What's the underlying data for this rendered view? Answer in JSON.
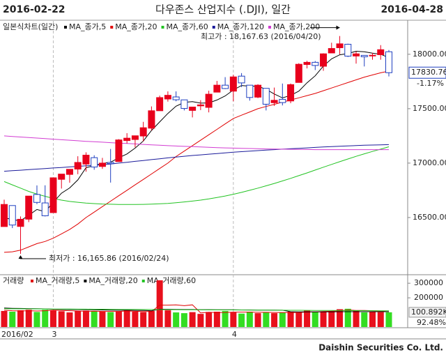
{
  "chart_data": {
    "type": "candlestick",
    "title": "다우존스 산업지수 (.DJI), 일간",
    "start_label": "2016-02-22",
    "end_label": "2016-04-28",
    "legend_title": "일본식차트(일간)",
    "categories": [
      "2016/02",
      null,
      null,
      null,
      null,
      null,
      "3",
      null,
      null,
      null,
      null,
      null,
      null,
      null,
      null,
      null,
      null,
      null,
      null,
      null,
      null,
      null,
      null,
      null,
      null,
      null,
      null,
      null,
      "4",
      null,
      null,
      null,
      null,
      null,
      null,
      null,
      null,
      null,
      null,
      null,
      null,
      null,
      null,
      null,
      null,
      null,
      null,
      null
    ],
    "open": [
      16417,
      16610,
      16418,
      16485,
      16712,
      16634,
      16545,
      16851,
      16896,
      16945,
      16991,
      17050,
      16969,
      17006,
      17014,
      17207,
      17217,
      17249,
      17321,
      17481,
      17589,
      17608,
      17581,
      17484,
      17526,
      17512,
      17652,
      17716,
      17661,
      17799,
      17716,
      17606,
      17687,
      17555,
      17586,
      17571,
      17741,
      17906,
      17926,
      17890,
      18012,
      18060,
      18092,
      17984,
      17990,
      17990,
      17996,
      18023
    ],
    "high": [
      16664,
      16610,
      16510,
      16697,
      16795,
      16796,
      16865,
      16900,
      16944,
      17063,
      17099,
      17072,
      17048,
      17130,
      17220,
      17275,
      17251,
      17379,
      17521,
      17620,
      17659,
      17659,
      17582,
      17515,
      17578,
      17665,
      17755,
      17790,
      17811,
      17827,
      17716,
      17725,
      17687,
      17694,
      17731,
      17731,
      17918,
      17940,
      17938,
      18009,
      18106,
      18167.63,
      18097,
      18026,
      17990,
      18012,
      18084,
      18039
    ],
    "low": [
      16417,
      16403,
      16165.86,
      16458,
      16623,
      16510,
      16545,
      16766,
      16820,
      16898,
      16921,
      16939,
      16947,
      16821,
      17014,
      17180,
      17145,
      17200,
      17300,
      17481,
      17565,
      17568,
      17484,
      17420,
      17487,
      17466,
      17652,
      17680,
      17568,
      17698,
      17574,
      17597,
      17484,
      17525,
      17530,
      17550,
      17741,
      17870,
      17855,
      17848,
      18012,
      18000,
      17975,
      17914,
      17888,
      17950,
      17950,
      17796
    ],
    "close": [
      16620,
      16431,
      16484,
      16697,
      16639,
      16516,
      16865,
      16899,
      16943,
      17006,
      17073,
      16964,
      17000,
      16995,
      17213,
      17229,
      17251,
      17325,
      17481,
      17602,
      17623,
      17582,
      17502,
      17515,
      17535,
      17633,
      17716,
      17685,
      17792,
      17737,
      17603,
      17716,
      17541,
      17577,
      17556,
      17721,
      17908,
      17926,
      17897,
      18004,
      18053,
      18096,
      17983,
      18004,
      17977,
      17991,
      18042,
      17830.76
    ],
    "up_color": "#e8001c",
    "down_color": "#1f3fc0",
    "series": [
      {
        "name": "MA_종가,5",
        "color": "#000000",
        "values": [
          16500,
          16480,
          16470,
          16520,
          16574,
          16553,
          16640,
          16723,
          16772,
          16846,
          16957,
          16977,
          16997,
          17008,
          17049,
          17084,
          17138,
          17203,
          17300,
          17378,
          17456,
          17523,
          17558,
          17565,
          17551,
          17553,
          17580,
          17617,
          17672,
          17713,
          17707,
          17707,
          17678,
          17635,
          17599,
          17622,
          17661,
          17738,
          17802,
          17891,
          17958,
          17995,
          18007,
          18028,
          18023,
          18010,
          18000,
          17969
        ]
      },
      {
        "name": "MA_종가,20",
        "color": "#e00000",
        "values": [
          16180,
          16185,
          16200,
          16230,
          16260,
          16280,
          16310,
          16350,
          16390,
          16440,
          16500,
          16550,
          16600,
          16650,
          16700,
          16750,
          16800,
          16850,
          16900,
          16950,
          17000,
          17060,
          17110,
          17160,
          17210,
          17260,
          17310,
          17360,
          17410,
          17440,
          17470,
          17500,
          17520,
          17540,
          17560,
          17580,
          17600,
          17620,
          17640,
          17665,
          17690,
          17715,
          17740,
          17765,
          17790,
          17810,
          17830,
          17845
        ]
      },
      {
        "name": "MA_종가,60",
        "color": "#22c322",
        "values": [
          16830,
          16800,
          16770,
          16740,
          16715,
          16695,
          16675,
          16660,
          16648,
          16640,
          16633,
          16628,
          16624,
          16622,
          16620,
          16620,
          16620,
          16621,
          16623,
          16626,
          16630,
          16636,
          16643,
          16651,
          16660,
          16671,
          16684,
          16698,
          16714,
          16731,
          16750,
          16770,
          16791,
          16813,
          16836,
          16860,
          16885,
          16910,
          16936,
          16962,
          16988,
          17013,
          17038,
          17062,
          17085,
          17107,
          17128,
          17150
        ]
      },
      {
        "name": "MA_종가,120",
        "color": "#1a1a9a",
        "values": [
          16925,
          16930,
          16935,
          16940,
          16945,
          16950,
          16955,
          16960,
          16965,
          16970,
          16975,
          16980,
          16985,
          16992,
          17000,
          17008,
          17016,
          17024,
          17032,
          17040,
          17048,
          17056,
          17063,
          17070,
          17076,
          17082,
          17088,
          17094,
          17100,
          17105,
          17110,
          17115,
          17120,
          17124,
          17128,
          17132,
          17136,
          17140,
          17144,
          17148,
          17152,
          17155,
          17158,
          17161,
          17164,
          17166,
          17168,
          17170
        ]
      },
      {
        "name": "MA_종가,200",
        "color": "#d23cd2",
        "values": [
          17250,
          17245,
          17240,
          17235,
          17230,
          17225,
          17220,
          17215,
          17210,
          17205,
          17200,
          17196,
          17192,
          17188,
          17184,
          17180,
          17176,
          17172,
          17168,
          17164,
          17160,
          17157,
          17154,
          17151,
          17148,
          17145,
          17142,
          17140,
          17138,
          17136,
          17134,
          17132,
          17130,
          17129,
          17128,
          17127,
          17126,
          17125,
          17124,
          17124,
          17124,
          17124,
          17124,
          17124,
          17124,
          17124,
          17124,
          17124
        ]
      }
    ],
    "ylim": [
      16000,
      18300
    ],
    "yticks": [
      {
        "value": 16500,
        "label": "16500.00"
      },
      {
        "value": 17000,
        "label": "17000.00"
      },
      {
        "value": 17500,
        "label": "17500.00"
      },
      {
        "value": 18000,
        "label": "18000.00"
      }
    ],
    "last_label": "17830.76",
    "change_label": "-1.17%",
    "high_label": "최고가 : 18,167.63 (2016/04/20)",
    "low_label": "최저가 : 16,165.86 (2016/02/24)",
    "volume": {
      "title": "거래량",
      "values": [
        110000,
        105000,
        115000,
        118000,
        103000,
        118000,
        112000,
        108000,
        100000,
        110000,
        112000,
        108000,
        105000,
        102000,
        108000,
        115000,
        105000,
        102000,
        110000,
        320000,
        115000,
        100000,
        95000,
        102000,
        90000,
        103000,
        105000,
        110000,
        100000,
        92000,
        105000,
        95000,
        102000,
        95000,
        98000,
        105000,
        100000,
        115000,
        102000,
        108000,
        110000,
        122000,
        125000,
        110000,
        100000,
        105000,
        102000,
        100892
      ],
      "series": [
        {
          "name": "MA_거래량,5",
          "color": "#e00000",
          "values": [
            115000,
            112000,
            110000,
            112000,
            110000,
            112000,
            115000,
            113000,
            112000,
            110000,
            108000,
            109000,
            107000,
            107000,
            107000,
            110000,
            108000,
            106000,
            106000,
            150000,
            150000,
            152000,
            146000,
            152000,
            97000,
            101000,
            99000,
            100000,
            102000,
            102000,
            102000,
            101000,
            101000,
            100000,
            99000,
            99000,
            99000,
            103000,
            103000,
            106000,
            108000,
            111000,
            117000,
            113000,
            113000,
            112000,
            110000,
            104000
          ]
        },
        {
          "name": "MA_거래량,20",
          "color": "#000000",
          "values": [
            130000,
            128000,
            127000,
            126000,
            125000,
            124000,
            122000,
            121000,
            120000,
            120000,
            119000,
            118000,
            117000,
            116000,
            115000,
            115000,
            114000,
            113000,
            112000,
            122000,
            122000,
            121000,
            120000,
            120000,
            119000,
            119000,
            118000,
            118000,
            118000,
            117000,
            117000,
            116000,
            116000,
            116000,
            115000,
            105000,
            104000,
            104000,
            104000,
            104000,
            104000,
            105000,
            105000,
            105000,
            105000,
            105000,
            105000,
            105000
          ]
        },
        {
          "name": "MA_거래량,60",
          "color": "#22c322",
          "values": [
            125000,
            124800,
            124500,
            124200,
            124000,
            123700,
            123400,
            123100,
            122800,
            122500,
            122200,
            121900,
            121600,
            121300,
            121000,
            120700,
            120400,
            120100,
            119800,
            119500,
            119200,
            118900,
            118600,
            118300,
            118000,
            117700,
            117400,
            117100,
            116800,
            116500,
            116200,
            115900,
            115600,
            115300,
            115000,
            114700,
            114400,
            114100,
            113800,
            113500,
            113200,
            112900,
            112600,
            112300,
            112000,
            111700,
            111400,
            111100
          ]
        }
      ],
      "ylim": [
        0,
        320000
      ],
      "yticks": [
        200000,
        300000
      ],
      "last_label": "100.892K",
      "ratio_label": "92.48%"
    },
    "footer": "Daishin Securities Co. Ltd."
  }
}
